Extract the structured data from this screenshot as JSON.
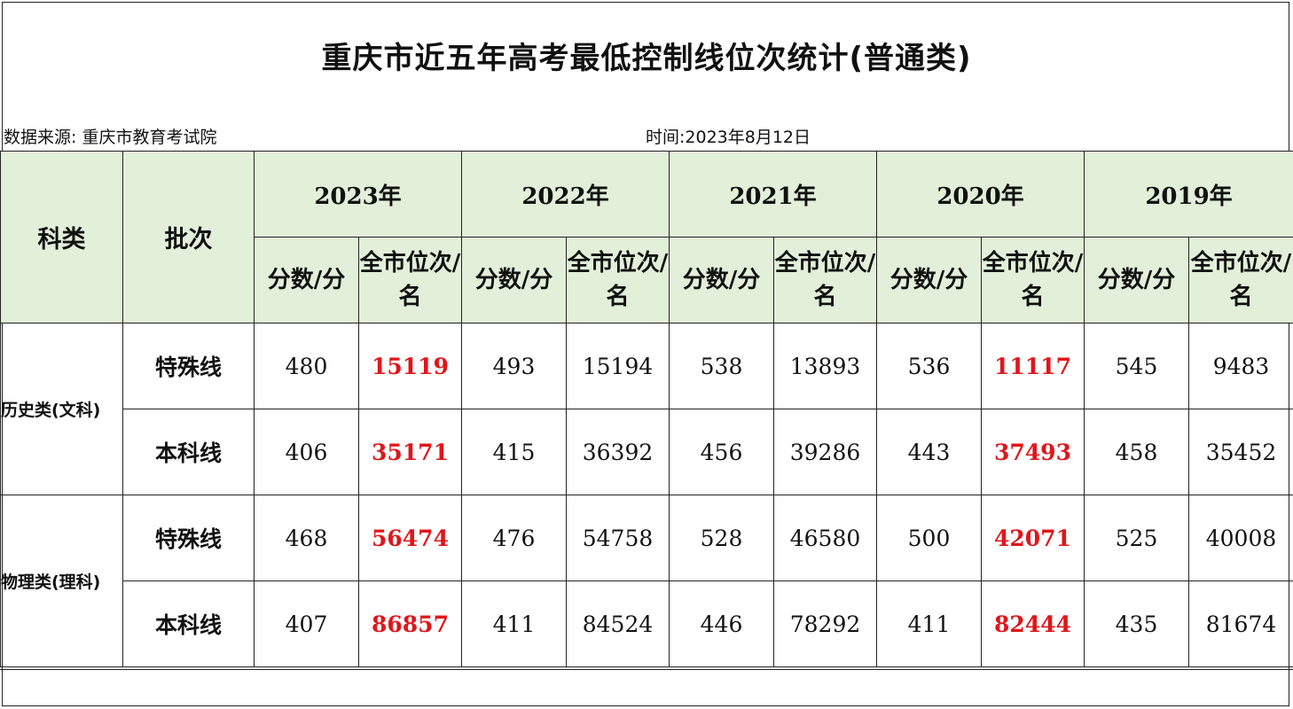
{
  "title": "重庆市近五年高考最低控制线位次统计(普通类)",
  "source": "数据来源:  重庆市教育考试院",
  "date": "时间:2023年8月12日",
  "headers": {
    "category": "科类",
    "batch": "批次",
    "years": [
      "2023年",
      "2022年",
      "2021年",
      "2020年",
      "2019年"
    ],
    "score": "分数/分",
    "rank": "全市位次/名"
  },
  "rows": [
    {
      "category": "历史类(文科)",
      "batch": "特殊线",
      "values": [
        "480",
        "15119",
        "493",
        "15194",
        "538",
        "13893",
        "536",
        "11117",
        "545",
        "9483"
      ]
    },
    {
      "batch": "本科线",
      "values": [
        "406",
        "35171",
        "415",
        "36392",
        "456",
        "39286",
        "443",
        "37493",
        "458",
        "35452"
      ]
    },
    {
      "category": "物理类(理科)",
      "batch": "特殊线",
      "values": [
        "468",
        "56474",
        "476",
        "54758",
        "528",
        "46580",
        "500",
        "42071",
        "525",
        "40008"
      ]
    },
    {
      "batch": "本科线",
      "values": [
        "407",
        "86857",
        "411",
        "84524",
        "446",
        "78292",
        "411",
        "82444",
        "435",
        "81674"
      ]
    }
  ],
  "highlight_color": "#e0161b",
  "header_color": "#e2efd9"
}
